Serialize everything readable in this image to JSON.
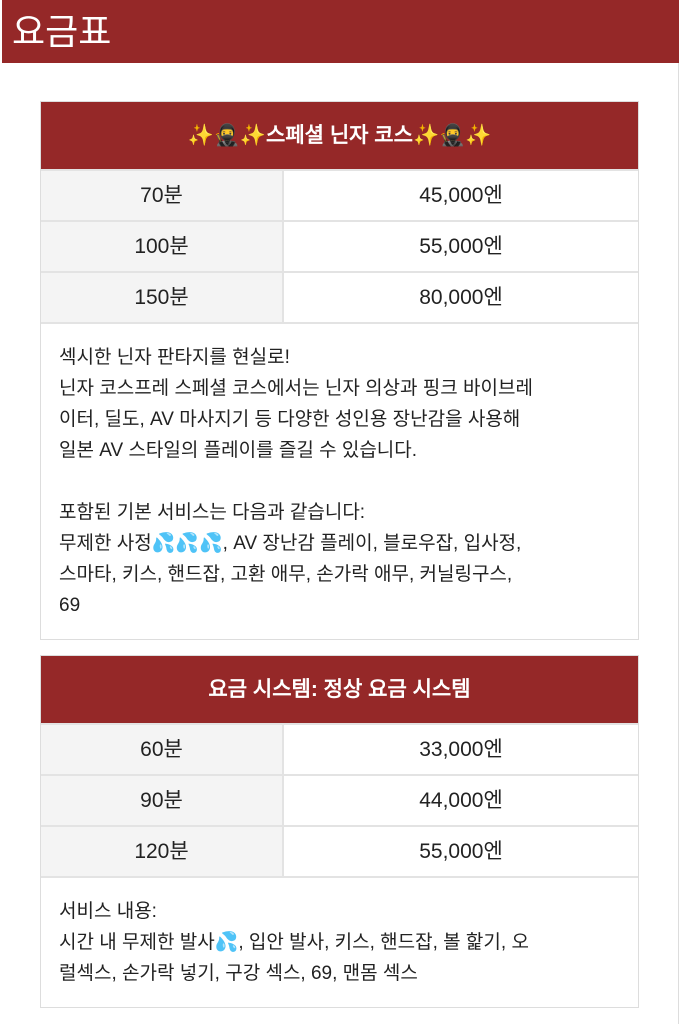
{
  "page": {
    "title": "요금표"
  },
  "cards": [
    {
      "heading": "✨🥷✨스페셜 닌자 코스✨🥷✨",
      "rows": [
        {
          "duration": "70분",
          "price": "45,000엔"
        },
        {
          "duration": "100분",
          "price": "55,000엔"
        },
        {
          "duration": "150분",
          "price": "80,000엔"
        }
      ],
      "description_lines": [
        "섹시한 닌자 판타지를 현실로!",
        "닌자 코스프레 스페셜 코스에서는 닌자 의상과 핑크 바이브레",
        "이터, 딜도, AV 마사지기 등 다양한 성인용 장난감을 사용해",
        "일본 AV 스타일의 플레이를 즐길 수 있습니다.",
        "",
        "포함된 기본 서비스는 다음과 같습니다:",
        "무제한 사정💦💦💦, AV 장난감 플레이, 블로우잡, 입사정,",
        "스마타, 키스, 핸드잡, 고환 애무, 손가락 애무, 커닐링구스,",
        "69"
      ]
    },
    {
      "heading": "요금 시스템: 정상 요금 시스템",
      "rows": [
        {
          "duration": "60분",
          "price": "33,000엔"
        },
        {
          "duration": "90분",
          "price": "44,000엔"
        },
        {
          "duration": "120분",
          "price": "55,000엔"
        }
      ],
      "description_lines": [
        "서비스 내용:",
        "시간 내 무제한 발사💦, 입안 발사, 키스, 핸드잡, 볼 핥기, 오",
        "럴섹스, 손가락 넣기, 구강 섹스, 69, 맨몸 섹스"
      ]
    }
  ],
  "colors": {
    "brand": "#952828",
    "duration_cell_bg": "#f4f4f4"
  }
}
